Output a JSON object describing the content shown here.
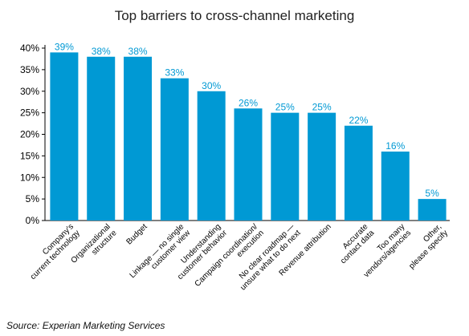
{
  "chart_data": {
    "type": "bar",
    "title": "Top barriers to cross-channel marketing",
    "categories": [
      [
        "Company's",
        "current technology"
      ],
      [
        "Organizational",
        "structure"
      ],
      [
        "Budget"
      ],
      [
        "Linkage — no single",
        "customer view"
      ],
      [
        "Understanding",
        "customer behavior"
      ],
      [
        "Campaign coordination/",
        "execution"
      ],
      [
        "No clear roadmap —",
        "unsure what to do next"
      ],
      [
        "Revenue attribution"
      ],
      [
        "Accurate",
        "contact data"
      ],
      [
        "Too many",
        "vendors/agencies"
      ],
      [
        "Other,",
        "please specify"
      ]
    ],
    "values": [
      39,
      38,
      38,
      33,
      30,
      26,
      25,
      25,
      22,
      16,
      5
    ],
    "data_labels": [
      "39%",
      "38%",
      "38%",
      "33%",
      "30%",
      "26%",
      "25%",
      "25%",
      "22%",
      "16%",
      "5%"
    ],
    "y_ticks": [
      "0%",
      "5%",
      "10%",
      "15%",
      "20%",
      "25%",
      "30%",
      "35%",
      "40%"
    ],
    "ylim": [
      0,
      40
    ],
    "grid": false,
    "xlabel": "",
    "ylabel": "",
    "bar_color": "#0099d4"
  },
  "source": "Source: Experian Marketing Services"
}
